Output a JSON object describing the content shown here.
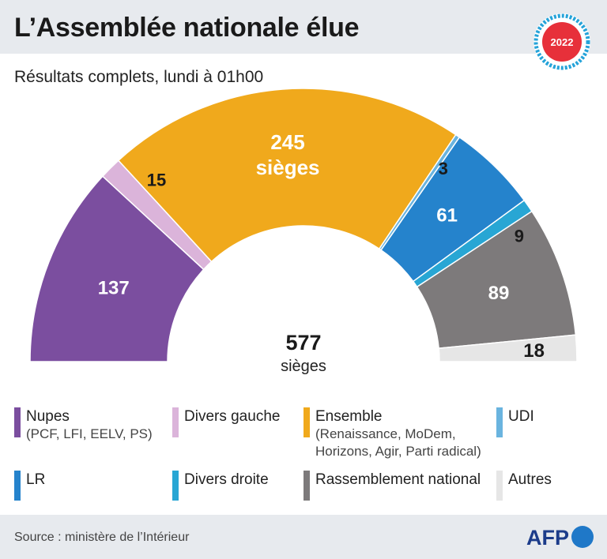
{
  "header": {
    "title": "L’Assemblée nationale élue",
    "badge_year": "2022"
  },
  "subtitle": "Résultats complets, lundi à 01h00",
  "center": {
    "total": "577",
    "unit": "sièges"
  },
  "chart_data": {
    "type": "parliament-semicircle",
    "title": "L’Assemblée nationale élue",
    "subtitle": "Résultats complets, lundi à 01h00",
    "total": 577,
    "series": [
      {
        "name": "Nupes",
        "value": 137,
        "label": "137",
        "color": "#7b4e9f"
      },
      {
        "name": "Divers gauche",
        "value": 15,
        "label": "15",
        "color": "#dbb4da"
      },
      {
        "name": "Ensemble",
        "value": 245,
        "label": "245",
        "label2": "sièges",
        "color": "#f0a91c"
      },
      {
        "name": "UDI",
        "value": 3,
        "label": "3",
        "color": "#6ab4df"
      },
      {
        "name": "LR",
        "value": 61,
        "label": "61",
        "color": "#2583cc"
      },
      {
        "name": "Divers droite",
        "value": 9,
        "label": "9",
        "color": "#28a6d4"
      },
      {
        "name": "Rassemblement national",
        "value": 89,
        "label": "89",
        "color": "#7d7a7b"
      },
      {
        "name": "Autres",
        "value": 18,
        "label": "18",
        "color": "#e6e6e6"
      }
    ]
  },
  "legend": [
    {
      "name": "Nupes",
      "sub": "(PCF, LFI, EELV, PS)",
      "color": "#7b4e9f"
    },
    {
      "name": "Divers gauche",
      "sub": "",
      "color": "#dbb4da"
    },
    {
      "name": "Ensemble",
      "sub": "(Renaissance, MoDem,",
      "sub2": "Horizons, Agir, Parti radical)",
      "color": "#f0a91c"
    },
    {
      "name": "UDI",
      "sub": "",
      "color": "#6ab4df"
    },
    {
      "name": "LR",
      "sub": "",
      "color": "#2583cc"
    },
    {
      "name": "Divers droite",
      "sub": "",
      "color": "#28a6d4"
    },
    {
      "name": "Rassemblement national",
      "sub": "",
      "color": "#7d7a7b"
    },
    {
      "name": "Autres",
      "sub": "",
      "color": "#e6e6e6"
    }
  ],
  "footer": {
    "source": "Source : ministère de l’Intérieur",
    "logo_text": "AFP"
  }
}
